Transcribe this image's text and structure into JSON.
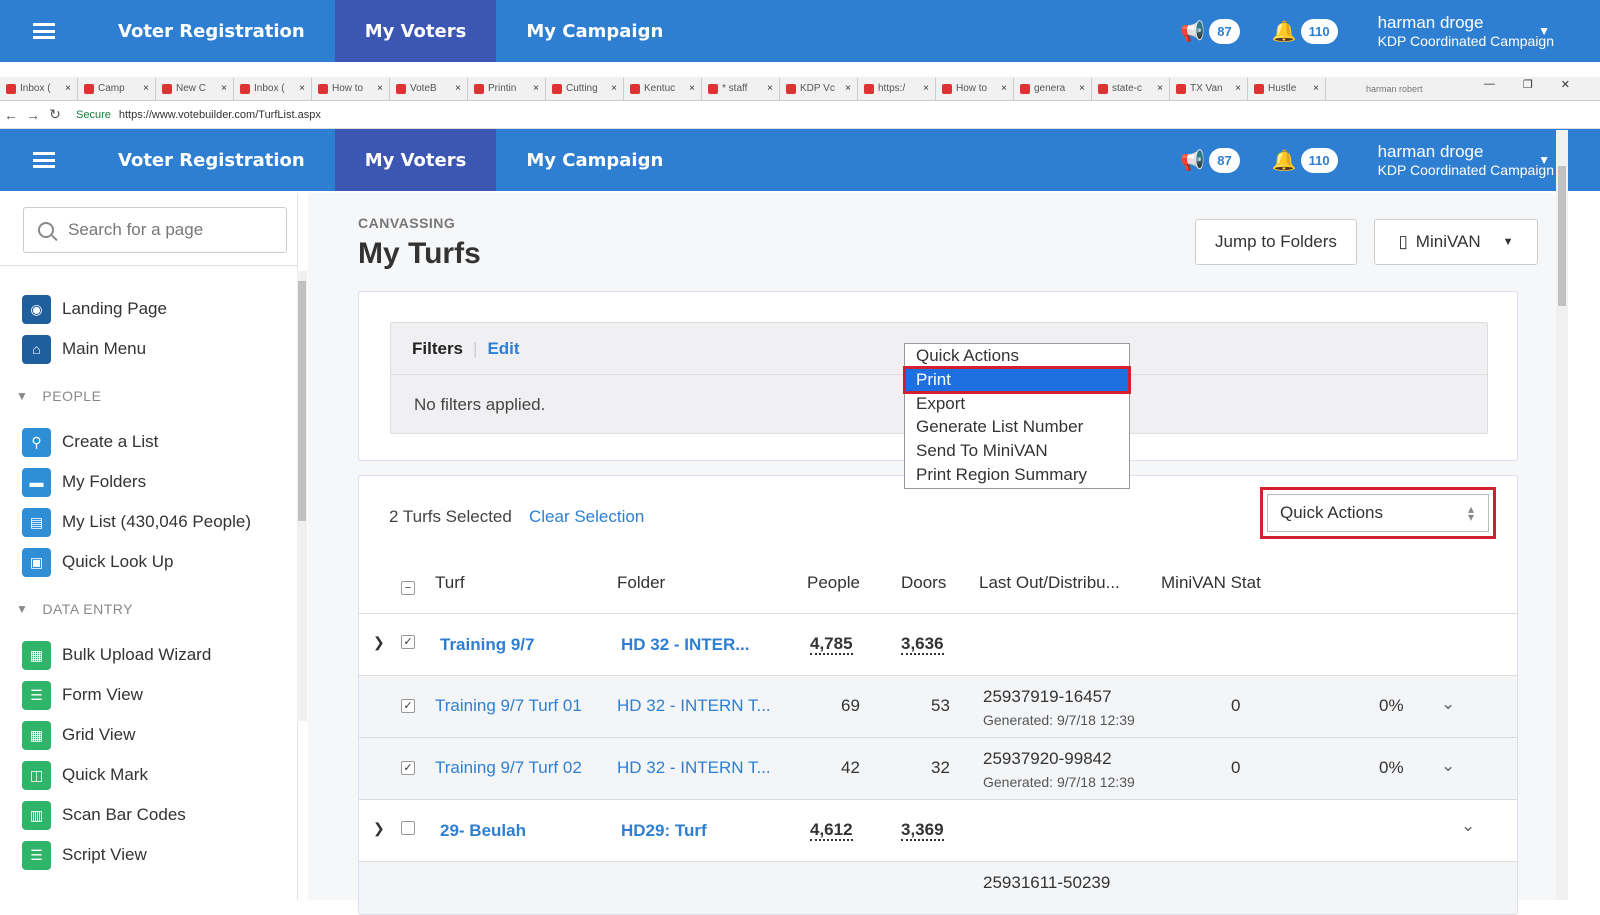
{
  "topnav": {
    "voter_registration": "Voter Registration",
    "my_voters": "My Voters",
    "my_campaign": "My Campaign",
    "announcements_count": "87",
    "notifications_count": "110",
    "user_name": "harman droge",
    "campaign": "KDP Coordinated Campaign"
  },
  "browser": {
    "tabs": [
      "Inbox (",
      "Camp",
      "New C",
      "Inbox (",
      "How to",
      "VoteB",
      "Printin",
      "Cutting",
      "Kentuc",
      "* staff",
      "KDP Vc",
      "https:/",
      "How to",
      "genera",
      "state-c",
      "TX Van",
      "Hustle"
    ],
    "profile": "harman robert",
    "secure": "Secure",
    "url": "https://www.votebuilder.com/TurfList.aspx"
  },
  "sidebar": {
    "search_placeholder": "Search for a page",
    "items_top": [
      {
        "label": "Landing Page",
        "icon": "dashboard-icon"
      },
      {
        "label": "Main Menu",
        "icon": "home-icon"
      }
    ],
    "section_people": "PEOPLE",
    "items_people": [
      {
        "label": "Create a List",
        "icon": "search-icon"
      },
      {
        "label": "My Folders",
        "icon": "folder-icon"
      },
      {
        "label": "My List (430,046 People)",
        "icon": "list-icon"
      },
      {
        "label": "Quick Look Up",
        "icon": "id-card-icon"
      }
    ],
    "section_data": "DATA ENTRY",
    "items_data": [
      {
        "label": "Bulk Upload Wizard",
        "icon": "upload-icon"
      },
      {
        "label": "Form View",
        "icon": "form-icon"
      },
      {
        "label": "Grid View",
        "icon": "grid-icon"
      },
      {
        "label": "Quick Mark",
        "icon": "book-icon"
      },
      {
        "label": "Scan Bar Codes",
        "icon": "barcode-icon"
      },
      {
        "label": "Script View",
        "icon": "script-icon"
      }
    ]
  },
  "main": {
    "section": "CANVASSING",
    "title": "My Turfs",
    "jump_button": "Jump to Folders",
    "minivan_button": "MiniVAN",
    "filters_label": "Filters",
    "edit_label": "Edit",
    "no_filters": "No filters applied.",
    "selected_text": "2 Turfs Selected",
    "clear_selection": "Clear Selection",
    "quick_actions": "Quick Actions",
    "quick_actions_options": [
      "Quick Actions",
      "Print",
      "Export",
      "Generate List Number",
      "Send To MiniVAN",
      "Print Region Summary"
    ],
    "highlighted_option": "Print",
    "columns": {
      "turf": "Turf",
      "folder": "Folder",
      "people": "People",
      "doors": "Doors",
      "last_out": "Last Out/Distribu...",
      "minivan": "MiniVAN Stat"
    },
    "rows": [
      {
        "turf": "Training 9/7",
        "folder": "HD 32 - INTER...",
        "people": "4,785",
        "doors": "3,636"
      },
      {
        "turf": "Training 9/7 Turf 01",
        "folder": "HD 32 - INTERN T...",
        "people": "69",
        "doors": "53",
        "list_no": "25937919-16457",
        "generated": "Generated: 9/7/18 12:39",
        "minivan": "0",
        "pct": "0%"
      },
      {
        "turf": "Training 9/7 Turf 02",
        "folder": "HD 32 - INTERN T...",
        "people": "42",
        "doors": "32",
        "list_no": "25937920-99842",
        "generated": "Generated: 9/7/18 12:39",
        "minivan": "0",
        "pct": "0%"
      },
      {
        "turf": "29- Beulah",
        "folder": "HD29: Turf",
        "people": "4,612",
        "doors": "3,369"
      },
      {
        "list_no": "25931611-50239"
      }
    ]
  }
}
